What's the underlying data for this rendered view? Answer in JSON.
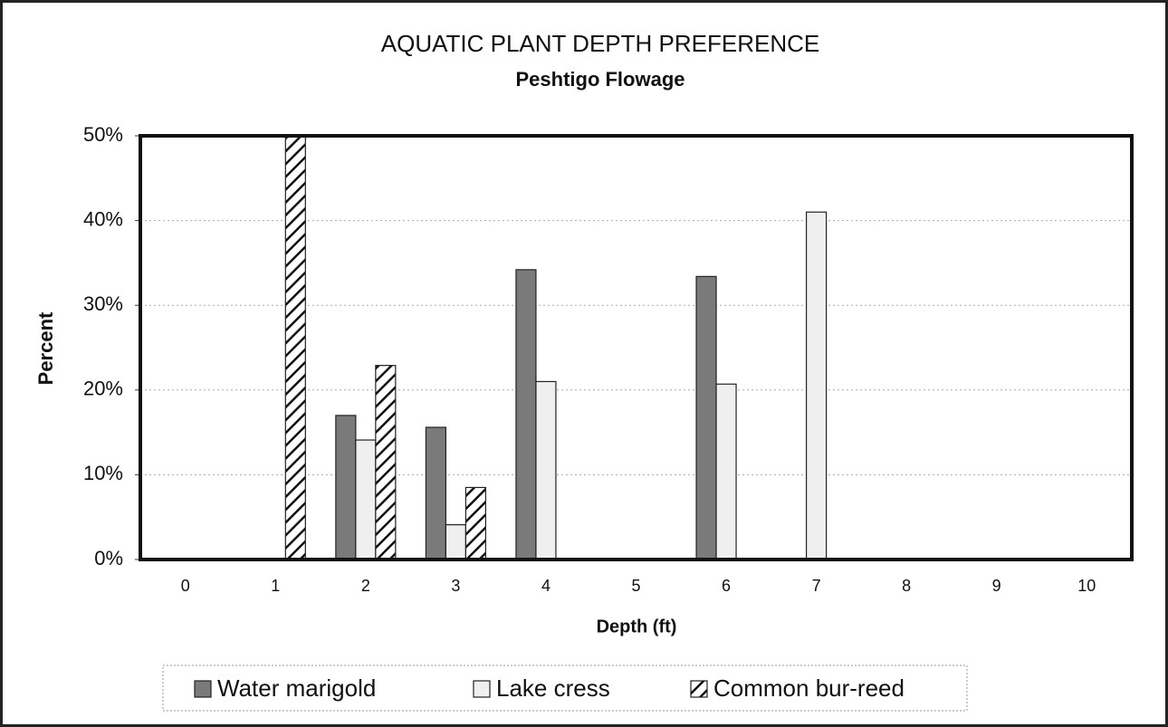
{
  "chart_data": {
    "type": "bar",
    "title": "AQUATIC PLANT DEPTH PREFERENCE",
    "subtitle": "Peshtigo Flowage",
    "x_label": "Depth (ft)",
    "y_label": "Percent",
    "categories": [
      "0",
      "1",
      "2",
      "3",
      "4",
      "5",
      "6",
      "7",
      "8",
      "9",
      "10"
    ],
    "series": [
      {
        "name": "Water marigold",
        "color": "#7a7a7a",
        "values": [
          0,
          0,
          17,
          15.6,
          34.2,
          0,
          33.4,
          0,
          0,
          0,
          0
        ]
      },
      {
        "name": "Lake cress",
        "color": "#efefef",
        "values": [
          0,
          0,
          14.1,
          4.1,
          21,
          0,
          20.7,
          41,
          0,
          0,
          0
        ]
      },
      {
        "name": "Common bur-reed",
        "color": "#ffffff",
        "pattern": "hatch",
        "values": [
          0,
          50,
          22.9,
          8.5,
          0,
          0,
          0,
          0,
          0,
          0,
          0
        ]
      }
    ],
    "ylim": [
      0,
      50
    ],
    "yticks": [
      {
        "value": 0,
        "label": "0%"
      },
      {
        "value": 10,
        "label": "10%"
      },
      {
        "value": 20,
        "label": "20%"
      },
      {
        "value": 30,
        "label": "30%"
      },
      {
        "value": 40,
        "label": "40%"
      },
      {
        "value": 50,
        "label": "50%"
      }
    ],
    "grid": true,
    "legend": "bottom"
  }
}
